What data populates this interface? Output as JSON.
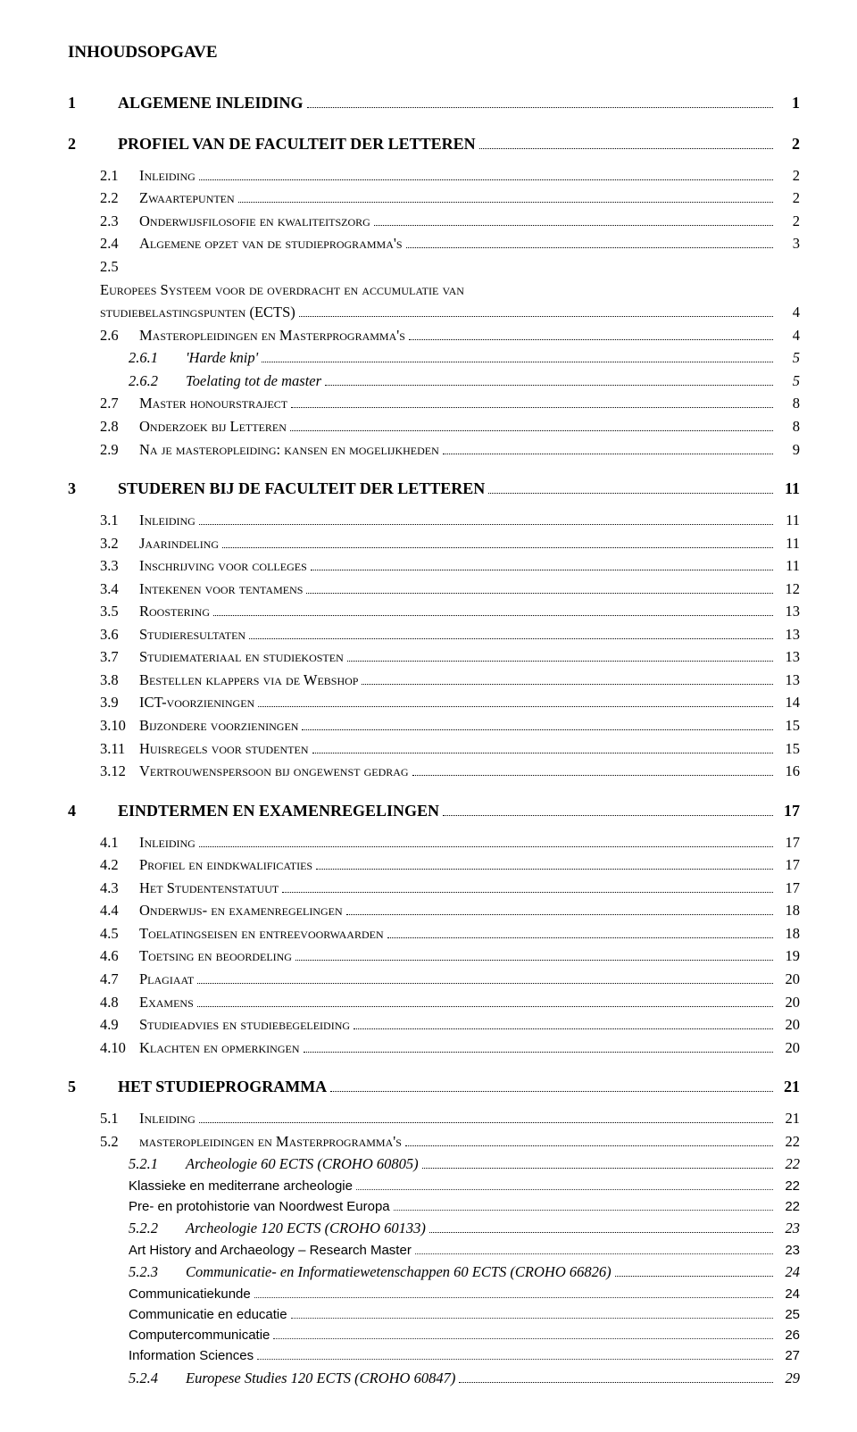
{
  "title": "INHOUDSOPGAVE",
  "toc": [
    {
      "level": 1,
      "num": "1",
      "label": "ALGEMENE INLEIDING",
      "page": "1"
    },
    {
      "level": 1,
      "num": "2",
      "label": "PROFIEL VAN DE FACULTEIT DER LETTEREN",
      "page": "2"
    },
    {
      "level": 2,
      "num": "2.1",
      "label": "Inleiding",
      "page": "2",
      "sc": true,
      "gtop": true
    },
    {
      "level": 2,
      "num": "2.2",
      "label": "Zwaartepunten",
      "page": "2",
      "sc": true
    },
    {
      "level": 2,
      "num": "2.3",
      "label": "Onderwijsfilosofie en kwaliteitszorg",
      "page": "2",
      "sc": true
    },
    {
      "level": 2,
      "num": "2.4",
      "label": "Algemene opzet van de studieprogramma's",
      "page": "3",
      "sc": true
    },
    {
      "level": 2,
      "num": "2.5",
      "label": "Europees Systeem voor de overdracht en accumulatie van studiebelastingspunten (ECTS)",
      "page": "4",
      "sc": true,
      "wrap": true
    },
    {
      "level": 2,
      "num": "2.6",
      "label": "Masteropleidingen en Masterprogramma's",
      "page": "4",
      "sc": true
    },
    {
      "level": 3,
      "num": "2.6.1",
      "label": "'Harde knip'",
      "page": "5",
      "it": true,
      "numw": 64
    },
    {
      "level": 3,
      "num": "2.6.2",
      "label": "Toelating tot de master",
      "page": "5",
      "it": true,
      "numw": 64
    },
    {
      "level": 2,
      "num": "2.7",
      "label": "Master honourstraject",
      "page": "8",
      "sc": true
    },
    {
      "level": 2,
      "num": "2.8",
      "label": "Onderzoek bij Letteren",
      "page": "8",
      "sc": true
    },
    {
      "level": 2,
      "num": "2.9",
      "label": "Na je masteropleiding: kansen en mogelijkheden",
      "page": "9",
      "sc": true,
      "gbot": true
    },
    {
      "level": 1,
      "num": "3",
      "label": "STUDEREN BIJ DE FACULTEIT DER LETTEREN",
      "page": "11"
    },
    {
      "level": 2,
      "num": "3.1",
      "label": "Inleiding",
      "page": "11",
      "sc": true,
      "gtop": true
    },
    {
      "level": 2,
      "num": "3.2",
      "label": "Jaarindeling",
      "page": "11",
      "sc": true
    },
    {
      "level": 2,
      "num": "3.3",
      "label": "Inschrijving voor colleges",
      "page": "11",
      "sc": true
    },
    {
      "level": 2,
      "num": "3.4",
      "label": "Intekenen voor tentamens",
      "page": "12",
      "sc": true
    },
    {
      "level": 2,
      "num": "3.5",
      "label": "Roostering",
      "page": "13",
      "sc": true
    },
    {
      "level": 2,
      "num": "3.6",
      "label": "Studieresultaten",
      "page": "13",
      "sc": true
    },
    {
      "level": 2,
      "num": "3.7",
      "label": "Studiemateriaal en studiekosten",
      "page": "13",
      "sc": true
    },
    {
      "level": 2,
      "num": "3.8",
      "label": "Bestellen klappers via de Webshop",
      "page": "13",
      "sc": true
    },
    {
      "level": 2,
      "num": "3.9",
      "label": "ICT-voorzieningen",
      "page": "14",
      "sc": true
    },
    {
      "level": 2,
      "num": "3.10",
      "label": "Bijzondere voorzieningen",
      "page": "15",
      "sc": true
    },
    {
      "level": 2,
      "num": "3.11",
      "label": "Huisregels voor studenten",
      "page": "15",
      "sc": true
    },
    {
      "level": 2,
      "num": "3.12",
      "label": "Vertrouwenspersoon bij ongewenst gedrag",
      "page": "16",
      "sc": true,
      "gbot": true
    },
    {
      "level": 1,
      "num": "4",
      "label": "EINDTERMEN EN EXAMENREGELINGEN",
      "page": "17"
    },
    {
      "level": 2,
      "num": "4.1",
      "label": "Inleiding",
      "page": "17",
      "sc": true,
      "gtop": true
    },
    {
      "level": 2,
      "num": "4.2",
      "label": "Profiel en eindkwalificaties",
      "page": "17",
      "sc": true
    },
    {
      "level": 2,
      "num": "4.3",
      "label": "Het Studentenstatuut",
      "page": "17",
      "sc": true
    },
    {
      "level": 2,
      "num": "4.4",
      "label": "Onderwijs- en examenregelingen",
      "page": "18",
      "sc": true
    },
    {
      "level": 2,
      "num": "4.5",
      "label": "Toelatingseisen en entreevoorwaarden",
      "page": "18",
      "sc": true
    },
    {
      "level": 2,
      "num": "4.6",
      "label": "Toetsing en beoordeling",
      "page": "19",
      "sc": true
    },
    {
      "level": 2,
      "num": "4.7",
      "label": "Plagiaat",
      "page": "20",
      "sc": true
    },
    {
      "level": 2,
      "num": "4.8",
      "label": "Examens",
      "page": "20",
      "sc": true
    },
    {
      "level": 2,
      "num": "4.9",
      "label": "Studieadvies en studiebegeleiding",
      "page": "20",
      "sc": true
    },
    {
      "level": 2,
      "num": "4.10",
      "label": "Klachten en opmerkingen",
      "page": "20",
      "sc": true,
      "gbot": true
    },
    {
      "level": 1,
      "num": "5",
      "label": "HET STUDIEPROGRAMMA",
      "page": "21"
    },
    {
      "level": 2,
      "num": "5.1",
      "label": "Inleiding",
      "page": "21",
      "sc": true,
      "gtop": true
    },
    {
      "level": 2,
      "num": "5.2",
      "label": "masteropleidingen en Masterprogramma's",
      "page": "22",
      "sc": true
    },
    {
      "level": 3,
      "num": "5.2.1",
      "label": "Archeologie 60 ECTS (CROHO 60805)",
      "page": "22",
      "it": true,
      "numw": 64
    },
    {
      "level": 4,
      "num": "",
      "label": "Klassieke en mediterrane archeologie",
      "page": "22"
    },
    {
      "level": 4,
      "num": "",
      "label": "Pre- en protohistorie van Noordwest Europa",
      "page": "22"
    },
    {
      "level": 3,
      "num": "5.2.2",
      "label": "Archeologie 120 ECTS (CROHO 60133)",
      "page": "23",
      "it": true,
      "numw": 64
    },
    {
      "level": 4,
      "num": "",
      "label": "Art History and Archaeology – Research Master",
      "page": "23"
    },
    {
      "level": 3,
      "num": "5.2.3",
      "label": "Communicatie- en Informatiewetenschappen 60 ECTS (CROHO 66826)",
      "page": "24",
      "it": true,
      "numw": 64
    },
    {
      "level": 4,
      "num": "",
      "label": "Communicatiekunde",
      "page": "24"
    },
    {
      "level": 4,
      "num": "",
      "label": "Communicatie en educatie",
      "page": "25"
    },
    {
      "level": 4,
      "num": "",
      "label": "Computercommunicatie",
      "page": "26"
    },
    {
      "level": 4,
      "num": "",
      "label": "Information Sciences",
      "page": "27"
    },
    {
      "level": 3,
      "num": "5.2.4",
      "label": "Europese Studies 120 ECTS (CROHO 60847)",
      "page": "29",
      "it": true,
      "numw": 64
    }
  ]
}
